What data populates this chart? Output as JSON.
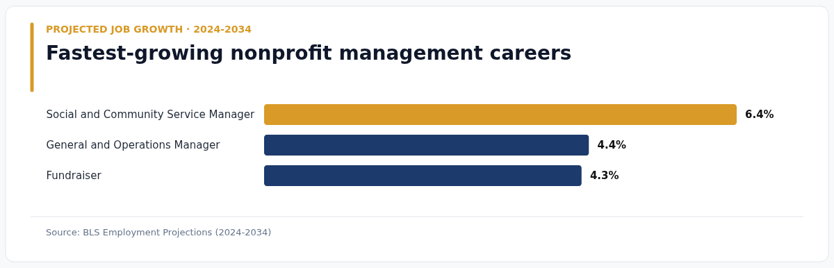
{
  "chart_data": {
    "type": "bar",
    "orientation": "horizontal",
    "subtitle": "PROJECTED JOB GROWTH · 2024-2034",
    "title": "Fastest-growing nonprofit management careers",
    "categories": [
      "Social and Community Service Manager",
      "General and Operations Manager",
      "Fundraiser"
    ],
    "values": [
      6.4,
      4.4,
      4.3
    ],
    "colors": [
      "#d99a27",
      "#1c3a6b",
      "#1c3a6b"
    ],
    "value_labels": [
      "6.4%",
      "4.4%",
      "4.3%"
    ],
    "annotations": [
      "Source: BLS Employment Projections (2024-2034)"
    ]
  }
}
